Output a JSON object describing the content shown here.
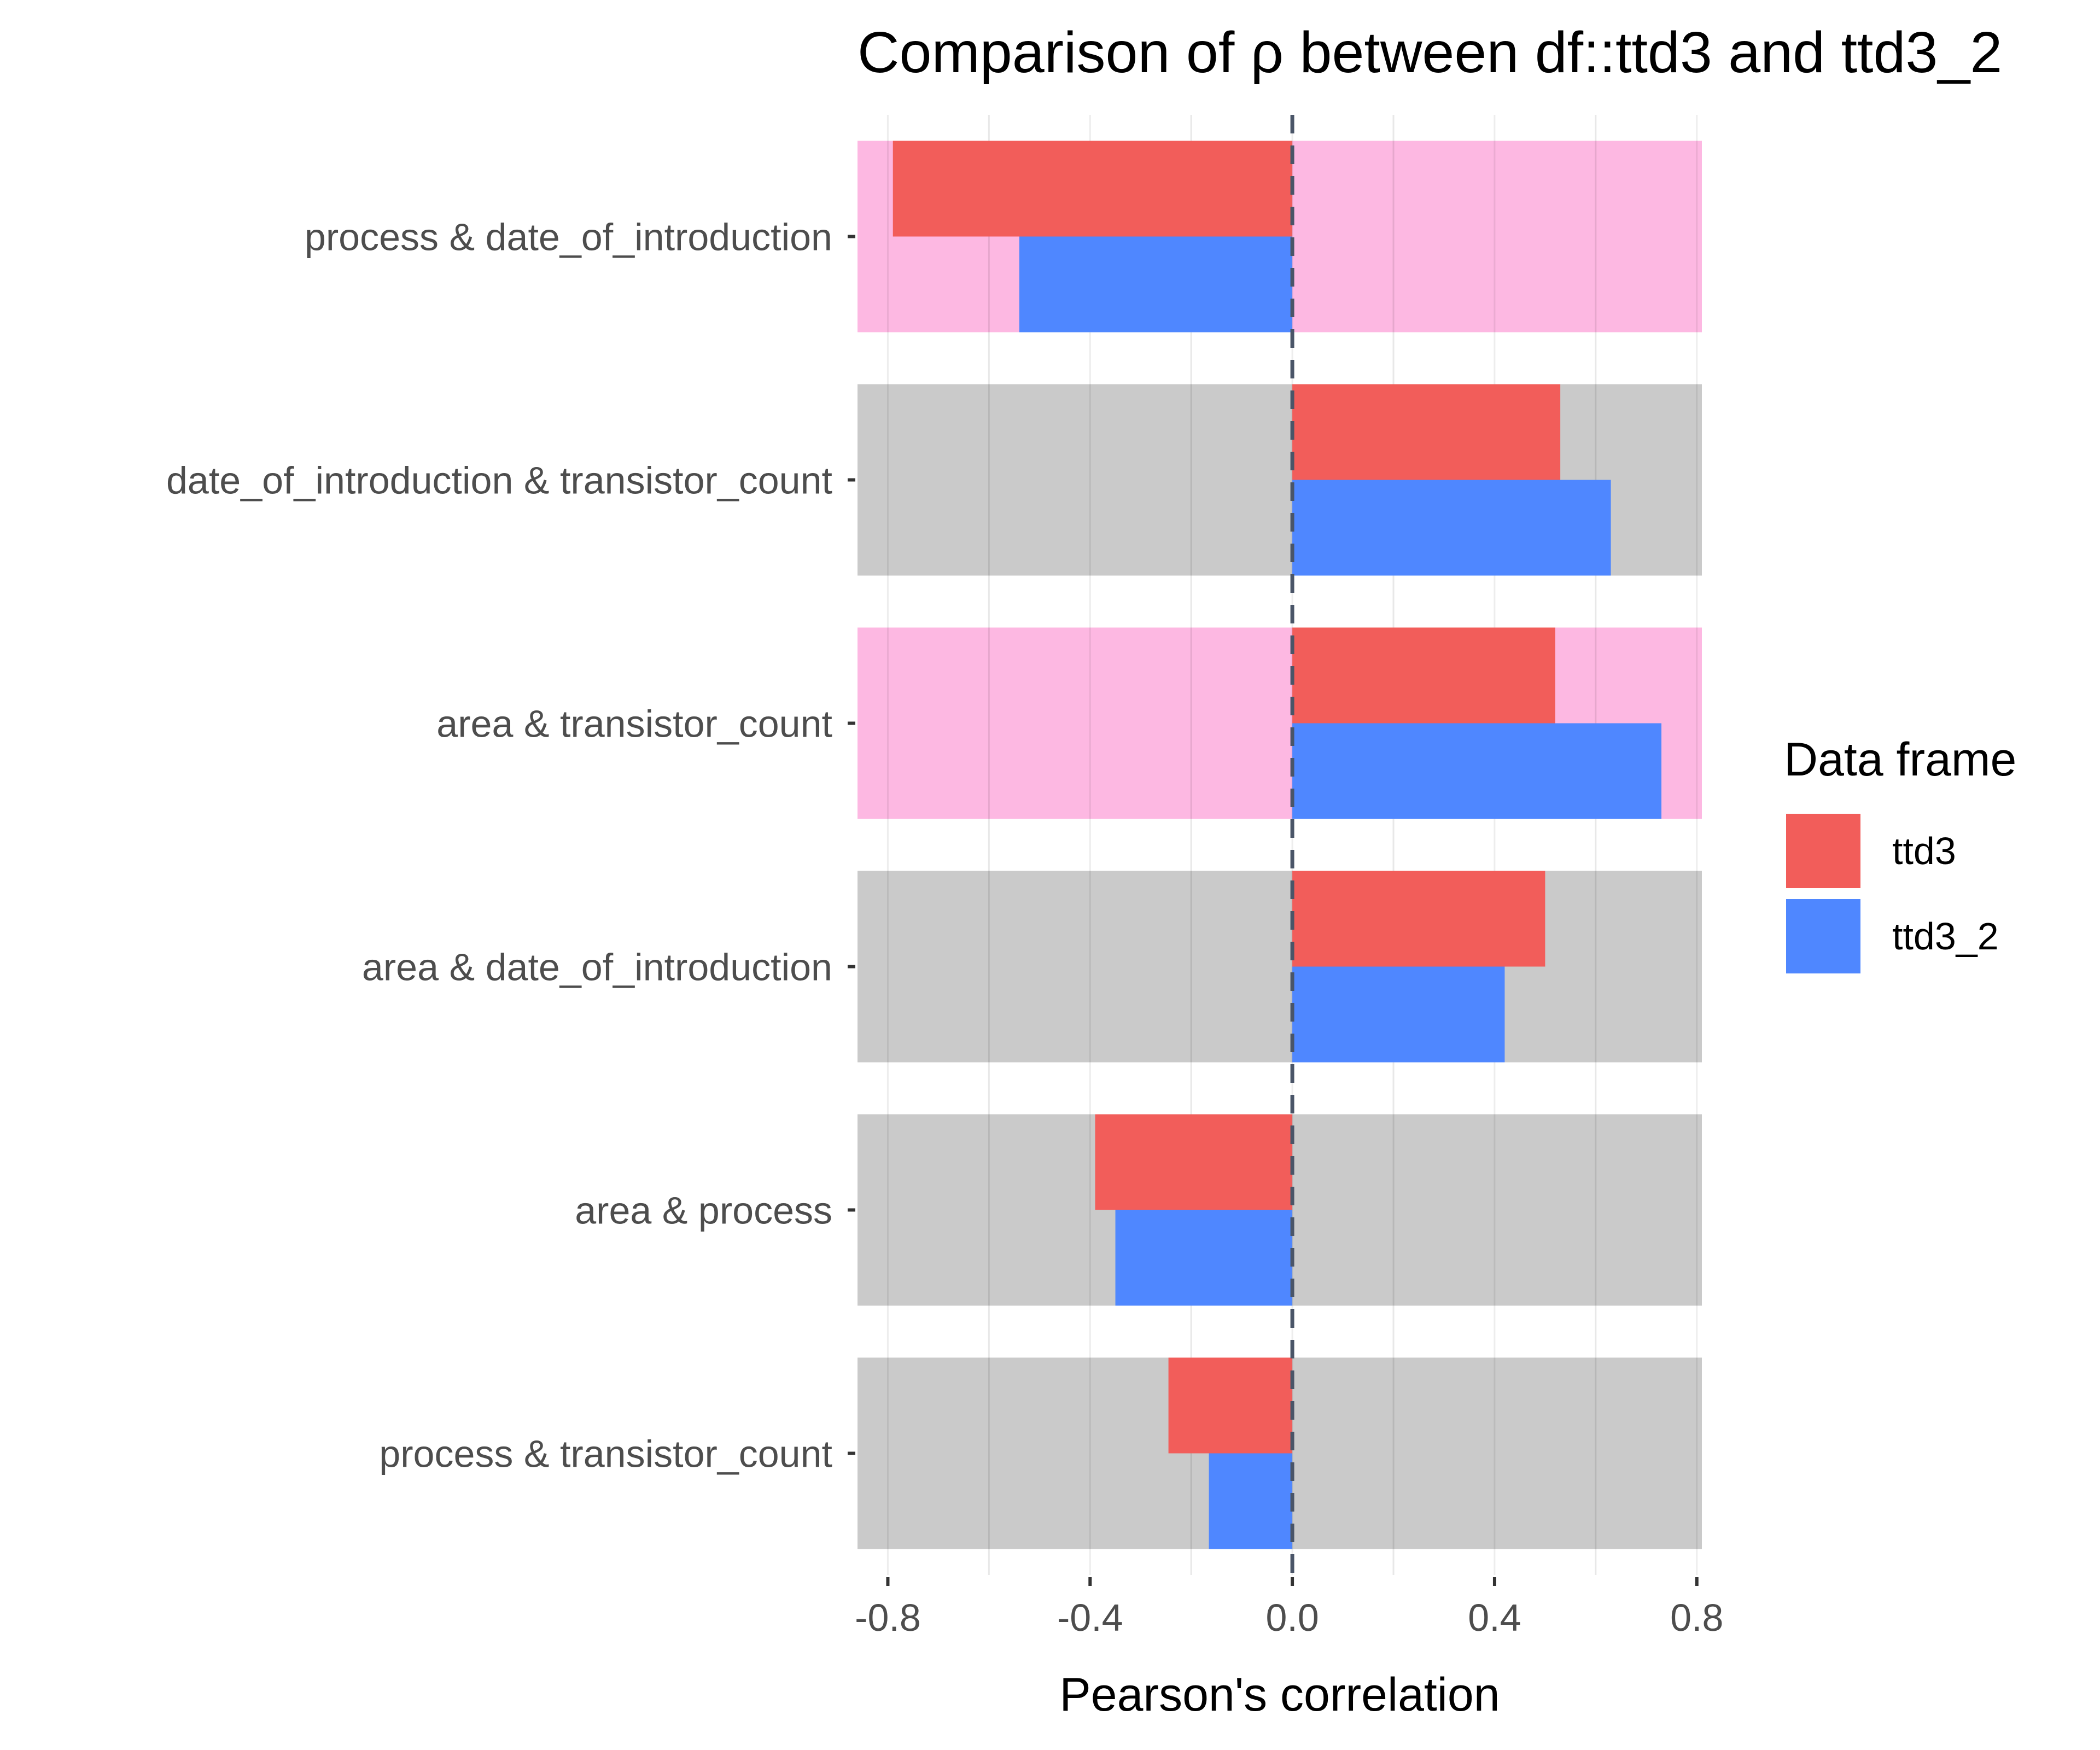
{
  "chart_data": {
    "type": "bar",
    "orientation": "horizontal",
    "title": "Comparison of ρ between df::ttd3 and ttd3_2",
    "xlabel": "Pearson's correlation",
    "ylabel": "",
    "xlim": [
      -0.86,
      0.81
    ],
    "x_ticks": [
      "-0.8",
      "-0.4",
      "0.0",
      "0.4",
      "0.8"
    ],
    "x_tick_values": [
      -0.8,
      -0.4,
      0.0,
      0.4,
      0.8
    ],
    "reference_line": {
      "x": 0.0,
      "style": "dashed"
    },
    "grid": "vertical",
    "categories": [
      "process & date_of_introduction",
      "date_of_introduction & transistor_count",
      "area & transistor_count",
      "area & date_of_introduction",
      "area & process",
      "process & transistor_count"
    ],
    "category_highlight": [
      "pink",
      "grey",
      "pink",
      "grey",
      "grey",
      "grey"
    ],
    "series": [
      {
        "name": "ttd3",
        "color": "#F25D5A",
        "values": [
          -0.79,
          0.53,
          0.52,
          0.5,
          -0.39,
          -0.245
        ]
      },
      {
        "name": "ttd3_2",
        "color": "#4F87FF",
        "values": [
          -0.54,
          0.63,
          0.73,
          0.42,
          -0.35,
          -0.165
        ]
      }
    ],
    "highlight_colors": {
      "pink": "#FDB8E2",
      "grey": "#CACACA"
    },
    "legend": {
      "title": "Data frame",
      "position": "right"
    }
  }
}
